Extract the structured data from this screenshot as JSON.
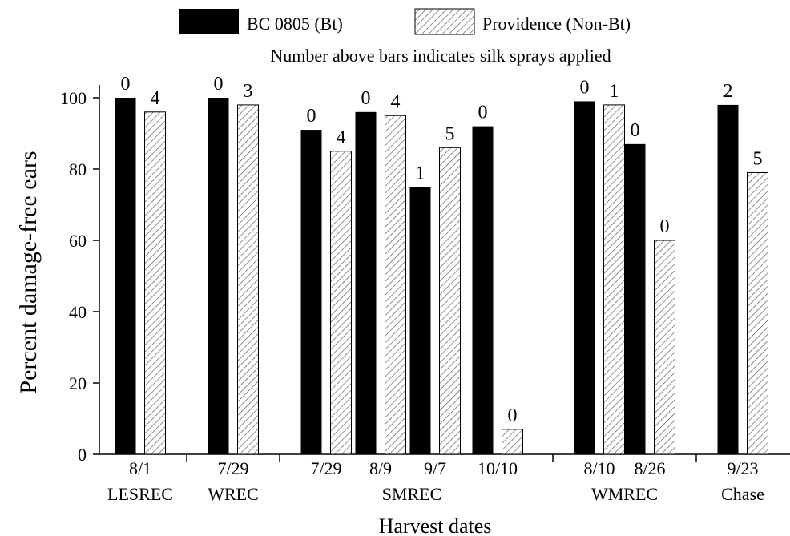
{
  "chart_data": {
    "type": "bar",
    "subtitle": "Number above bars indicates silk sprays applied",
    "xlabel": "Harvest dates",
    "ylabel": "Percent damage-free ears",
    "ylim": [
      0,
      100
    ],
    "yticks": [
      0,
      20,
      40,
      60,
      80,
      100
    ],
    "grid": false,
    "legend_position": "top",
    "groups": [
      {
        "label": "LESREC",
        "dates": [
          "8/1"
        ]
      },
      {
        "label": "WREC",
        "dates": [
          "7/29"
        ]
      },
      {
        "label": "SMREC",
        "dates": [
          "7/29",
          "8/9",
          "9/7",
          "10/10"
        ]
      },
      {
        "label": "WMREC",
        "dates": [
          "8/10",
          "8/26"
        ]
      },
      {
        "label": "Chase",
        "dates": [
          "9/23"
        ]
      }
    ],
    "series": [
      {
        "name": "BC 0805 (Bt)",
        "color": "#000000",
        "pattern": "solid",
        "values": [
          100,
          100,
          91,
          96,
          75,
          92,
          99,
          87,
          98
        ],
        "sprays": [
          "0",
          "0",
          "0",
          "0",
          "1",
          "0",
          "0",
          "0",
          "2"
        ]
      },
      {
        "name": "Providence (Non-Bt)",
        "color": "#ffffff",
        "pattern": "diagonal-hatch",
        "values": [
          96,
          98,
          85,
          95,
          86,
          7,
          98,
          60,
          79
        ],
        "sprays": [
          "4",
          "3",
          "4",
          "4",
          "5",
          "0",
          "1",
          "0",
          "5"
        ]
      }
    ]
  }
}
